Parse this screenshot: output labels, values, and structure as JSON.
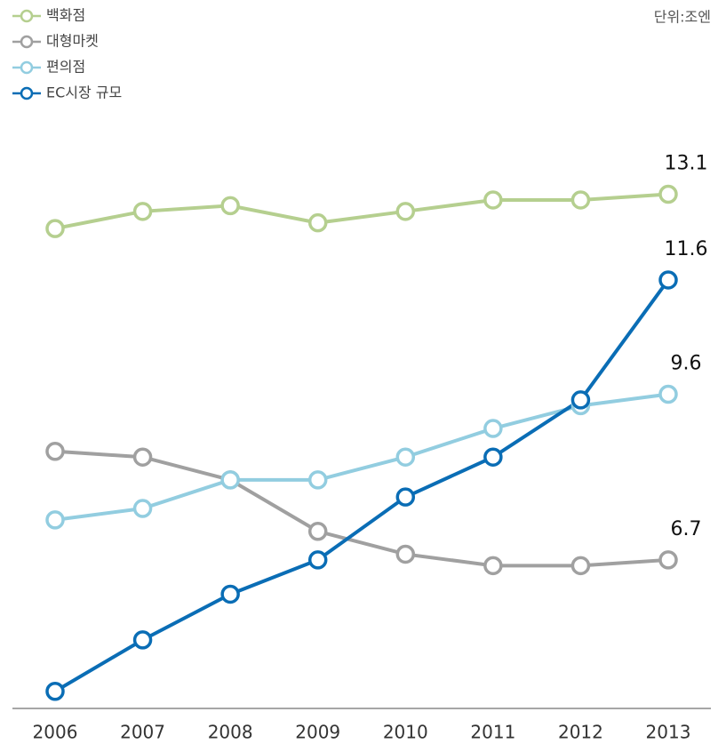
{
  "chart_data": {
    "type": "line",
    "unit_label": "단위:조엔",
    "categories": [
      "2006",
      "2007",
      "2008",
      "2009",
      "2010",
      "2011",
      "2012",
      "2013"
    ],
    "series": [
      {
        "name": "백화점",
        "color": "#b5cf8f",
        "values": [
          12.5,
          12.8,
          12.9,
          12.6,
          12.8,
          13.0,
          13.0,
          13.1
        ]
      },
      {
        "name": "대형마켓",
        "color": "#a0a0a0",
        "values": [
          8.6,
          8.5,
          8.1,
          7.2,
          6.8,
          6.6,
          6.6,
          6.7
        ]
      },
      {
        "name": "편의점",
        "color": "#92cde0",
        "values": [
          7.4,
          7.6,
          8.1,
          8.1,
          8.5,
          9.0,
          9.4,
          9.6
        ]
      },
      {
        "name": "EC시장 규모",
        "color": "#0a6db5",
        "values": [
          4.4,
          5.3,
          6.1,
          6.7,
          7.8,
          8.5,
          9.5,
          11.6
        ]
      }
    ],
    "ylim": [
      4.1,
      16.5
    ],
    "legend": "top-left"
  }
}
